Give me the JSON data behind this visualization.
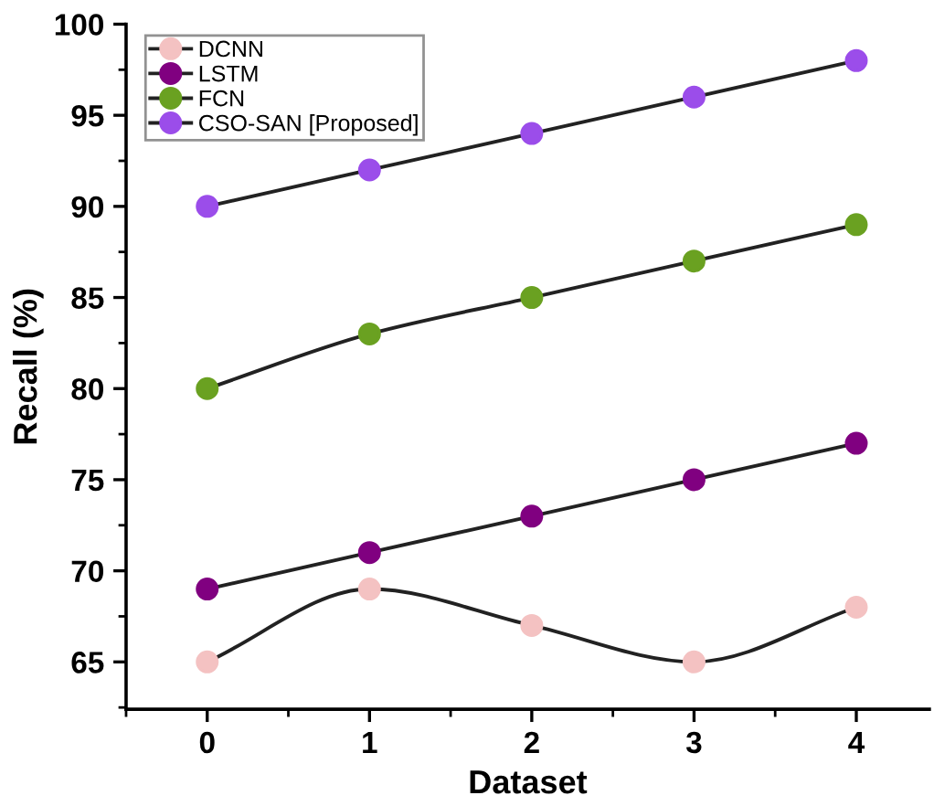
{
  "chart_data": {
    "type": "line",
    "xlabel": "Dataset",
    "ylabel": "Recall (%)",
    "x": [
      0,
      1,
      2,
      3,
      4
    ],
    "xlim": [
      -0.5,
      4.45
    ],
    "xticks": [
      0,
      1,
      2,
      3,
      4
    ],
    "ylim": [
      62.4,
      100
    ],
    "yticks": [
      65,
      70,
      75,
      80,
      85,
      90,
      95,
      100
    ],
    "grid": false,
    "legend": "top left",
    "marker": "circle",
    "series": [
      {
        "name": "DCNN",
        "color": "#f4c2c2",
        "values": [
          65,
          69,
          67,
          65,
          68
        ]
      },
      {
        "name": "LSTM",
        "color": "#800080",
        "values": [
          69,
          71,
          73,
          75,
          77
        ]
      },
      {
        "name": "FCN",
        "color": "#6aa121",
        "values": [
          80,
          83,
          85,
          87,
          89
        ]
      },
      {
        "name": "CSO-SAN [Proposed]",
        "color": "#9b4dea",
        "values": [
          90,
          92,
          94,
          96,
          98
        ]
      }
    ]
  }
}
